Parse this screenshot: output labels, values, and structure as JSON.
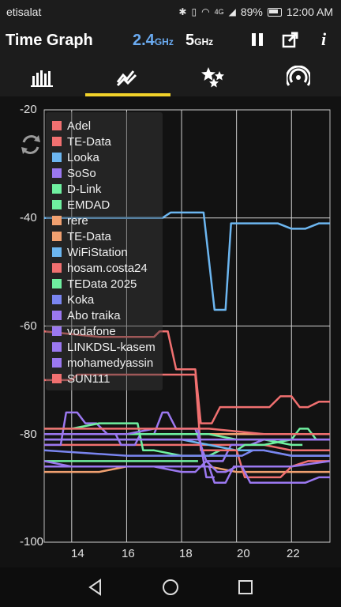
{
  "status": {
    "carrier": "etisalat",
    "battery": "89%",
    "time": "12:00 AM",
    "network": "4G"
  },
  "header": {
    "title": "Time Graph",
    "band_24_main": "2.4",
    "band_24_unit": "GHz",
    "band_5_main": "5",
    "band_5_unit": "GHz"
  },
  "tabs": [
    {
      "name": "bar-chart-icon"
    },
    {
      "name": "time-graph-icon",
      "selected": true
    },
    {
      "name": "rating-stars-icon"
    },
    {
      "name": "signal-icon"
    }
  ],
  "chart_data": {
    "type": "line",
    "xlim": [
      13,
      23.4
    ],
    "ylim": [
      -100,
      -20
    ],
    "y_ticks": [
      "-20",
      "-40",
      "-60",
      "-80",
      "-100"
    ],
    "x_ticks": [
      "14",
      "16",
      "18",
      "20",
      "22"
    ],
    "grid": true,
    "legend_placement": "top-left",
    "series": [
      {
        "name": "Adel",
        "color": "#f07070",
        "points": [
          [
            13,
            -82
          ],
          [
            16,
            -82
          ],
          [
            17,
            -82
          ],
          [
            18,
            -82
          ],
          [
            19,
            -82
          ],
          [
            20,
            -82
          ],
          [
            21,
            -82
          ],
          [
            22,
            -83
          ],
          [
            23.4,
            -83
          ]
        ]
      },
      {
        "name": "TE-Data",
        "color": "#f07070",
        "points": [
          [
            13,
            -61
          ],
          [
            15,
            -62
          ],
          [
            17,
            -62
          ],
          [
            17.2,
            -61
          ],
          [
            17.5,
            -61
          ],
          [
            17.8,
            -68
          ],
          [
            18.5,
            -68
          ],
          [
            18.7,
            -78
          ],
          [
            19.1,
            -78
          ],
          [
            19.4,
            -75
          ],
          [
            20.4,
            -75
          ],
          [
            21.2,
            -75
          ],
          [
            21.6,
            -73
          ],
          [
            22,
            -73
          ],
          [
            22.3,
            -75
          ],
          [
            22.6,
            -75
          ],
          [
            23,
            -74
          ],
          [
            23.4,
            -74
          ]
        ]
      },
      {
        "name": "Looka",
        "color": "#6cb6f0",
        "points": [
          [
            13,
            -40
          ],
          [
            17.3,
            -40
          ],
          [
            17.6,
            -39
          ],
          [
            18.4,
            -39
          ],
          [
            18.8,
            -39
          ],
          [
            19.2,
            -57
          ],
          [
            19.6,
            -57
          ],
          [
            19.8,
            -41
          ],
          [
            21.5,
            -41
          ],
          [
            22,
            -42
          ],
          [
            22.5,
            -42
          ],
          [
            23,
            -41
          ],
          [
            23.4,
            -41
          ]
        ]
      },
      {
        "name": "SoSo",
        "color": "#9b78f0",
        "points": [
          [
            13,
            -82
          ],
          [
            13.6,
            -82
          ],
          [
            13.8,
            -76
          ],
          [
            14.2,
            -76
          ],
          [
            14.5,
            -78
          ],
          [
            14.9,
            -78
          ],
          [
            15.3,
            -80
          ],
          [
            15.6,
            -80
          ],
          [
            15.8,
            -82
          ],
          [
            16.3,
            -82
          ],
          [
            16.5,
            -80
          ],
          [
            17,
            -80
          ],
          [
            17.3,
            -76
          ],
          [
            17.5,
            -76
          ],
          [
            17.8,
            -79
          ],
          [
            18.5,
            -79
          ],
          [
            18.9,
            -85
          ],
          [
            19.5,
            -85
          ],
          [
            19.8,
            -82
          ],
          [
            20,
            -82
          ],
          [
            20.5,
            -82
          ],
          [
            21,
            -81
          ],
          [
            22,
            -81
          ],
          [
            23.4,
            -81
          ]
        ]
      },
      {
        "name": "D-Link",
        "color": "#6ff0a0",
        "points": [
          [
            13,
            -79
          ],
          [
            14,
            -79
          ],
          [
            15,
            -78
          ],
          [
            16,
            -78
          ],
          [
            16.4,
            -78
          ],
          [
            16.6,
            -83
          ],
          [
            17,
            -83
          ],
          [
            18,
            -84
          ],
          [
            19,
            -84
          ],
          [
            19.4,
            -83
          ],
          [
            20,
            -83
          ],
          [
            20.3,
            -82
          ],
          [
            21,
            -82
          ],
          [
            22,
            -81
          ],
          [
            22.3,
            -79
          ],
          [
            22.6,
            -79
          ],
          [
            22.9,
            -81
          ]
        ]
      },
      {
        "name": "EMDAD",
        "color": "#6ff0a0",
        "points": [
          [
            13,
            -85
          ],
          [
            14,
            -85
          ],
          [
            15,
            -85
          ],
          [
            16,
            -85
          ],
          [
            17,
            -85
          ],
          [
            18,
            -85
          ],
          [
            18.6,
            -85
          ]
        ]
      },
      {
        "name": "rere",
        "color": "#f0a070",
        "points": [
          [
            13,
            -80
          ],
          [
            18.6,
            -80
          ],
          [
            18.6,
            -80
          ],
          [
            19,
            -80
          ],
          [
            20,
            -80
          ],
          [
            21,
            -80
          ],
          [
            22,
            -80
          ],
          [
            23.4,
            -80
          ]
        ]
      },
      {
        "name": "TE-Data",
        "color": "#f0a070",
        "points": [
          [
            13,
            -87
          ],
          [
            14,
            -87
          ],
          [
            15,
            -87
          ],
          [
            16,
            -86
          ],
          [
            17,
            -86
          ],
          [
            18,
            -86
          ],
          [
            19,
            -86
          ],
          [
            20,
            -87
          ],
          [
            21,
            -87
          ],
          [
            22,
            -87
          ],
          [
            23.4,
            -87
          ]
        ]
      },
      {
        "name": "WiFiStation",
        "color": "#6cb6f0",
        "points": [
          [
            13,
            -81
          ],
          [
            14,
            -81
          ],
          [
            15,
            -81
          ],
          [
            16,
            -81
          ],
          [
            17,
            -81
          ],
          [
            18,
            -81
          ],
          [
            19,
            -82
          ],
          [
            20,
            -83
          ],
          [
            21,
            -83
          ],
          [
            22,
            -84
          ],
          [
            23.4,
            -84
          ]
        ]
      },
      {
        "name": "hosam.costa24",
        "color": "#f07070",
        "points": [
          [
            13,
            -70
          ],
          [
            14,
            -70
          ],
          [
            14.2,
            -69
          ],
          [
            15,
            -69
          ],
          [
            16,
            -69
          ],
          [
            17,
            -69
          ],
          [
            18,
            -69
          ],
          [
            18.5,
            -69
          ],
          [
            18.7,
            -83
          ],
          [
            19,
            -83
          ],
          [
            19.6,
            -83
          ],
          [
            20,
            -83
          ],
          [
            20.3,
            -88
          ],
          [
            21,
            -88
          ],
          [
            21.6,
            -88
          ],
          [
            22,
            -86
          ],
          [
            22.6,
            -85
          ],
          [
            23.4,
            -85
          ]
        ]
      },
      {
        "name": "TEData 2025",
        "color": "#6ff0a0",
        "points": [
          [
            13,
            -80
          ],
          [
            16,
            -80
          ],
          [
            18,
            -80
          ],
          [
            19,
            -80
          ],
          [
            20,
            -81
          ],
          [
            21,
            -81
          ],
          [
            22,
            -82
          ],
          [
            22.4,
            -82
          ]
        ]
      },
      {
        "name": "Koka",
        "color": "#7a85f0",
        "points": [
          [
            13,
            -83
          ],
          [
            16,
            -84
          ],
          [
            18,
            -84
          ],
          [
            19,
            -84
          ],
          [
            19.5,
            -84
          ],
          [
            19.8,
            -84
          ],
          [
            20.2,
            -84
          ],
          [
            20.6,
            -83
          ],
          [
            21,
            -83
          ],
          [
            22,
            -84
          ],
          [
            23.4,
            -84
          ]
        ]
      },
      {
        "name": "Abo traika",
        "color": "#9b78f0",
        "points": [
          [
            13,
            -85
          ],
          [
            14,
            -86
          ],
          [
            15,
            -86
          ],
          [
            16,
            -86
          ],
          [
            17,
            -86
          ],
          [
            18,
            -87
          ],
          [
            18.5,
            -87
          ],
          [
            18.9,
            -85
          ],
          [
            19.3,
            -87
          ],
          [
            19.6,
            -87
          ],
          [
            20,
            -86
          ],
          [
            21,
            -86
          ],
          [
            22,
            -86
          ],
          [
            23.4,
            -85
          ]
        ]
      },
      {
        "name": "vodafone",
        "color": "#9b78f0",
        "points": [
          [
            13,
            -86
          ],
          [
            15,
            -86
          ],
          [
            17,
            -86
          ],
          [
            19,
            -86
          ],
          [
            19.2,
            -89
          ],
          [
            19.6,
            -89
          ],
          [
            19.9,
            -86
          ],
          [
            20.2,
            -86
          ],
          [
            20.5,
            -89
          ],
          [
            22,
            -89
          ],
          [
            22.5,
            -89
          ],
          [
            23,
            -88
          ],
          [
            23.4,
            -88
          ]
        ]
      },
      {
        "name": "LINKDSL-kasem",
        "color": "#9b78f0",
        "points": [
          [
            13,
            -81
          ],
          [
            15,
            -81
          ],
          [
            17,
            -81
          ],
          [
            19,
            -81
          ],
          [
            20,
            -81
          ],
          [
            21,
            -81
          ],
          [
            22,
            -81
          ],
          [
            23.4,
            -81
          ]
        ]
      },
      {
        "name": "mohamedyassin",
        "color": "#9b78f0",
        "points": [
          [
            13,
            -80
          ],
          [
            14,
            -80
          ],
          [
            15,
            -80
          ],
          [
            16,
            -80
          ],
          [
            17,
            -79
          ],
          [
            18,
            -79
          ],
          [
            18.6,
            -79
          ],
          [
            18.9,
            -88
          ],
          [
            19.2,
            -88
          ]
        ]
      },
      {
        "name": "SUN111",
        "color": "#f07070",
        "points": [
          [
            13,
            -79
          ],
          [
            15,
            -79
          ],
          [
            17,
            -79
          ],
          [
            19,
            -79
          ],
          [
            21,
            -80
          ],
          [
            23.4,
            -80
          ]
        ]
      }
    ]
  }
}
